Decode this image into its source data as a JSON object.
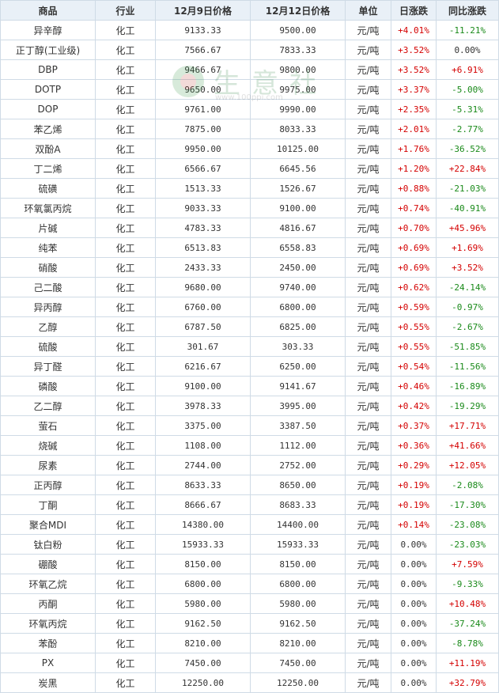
{
  "headers": [
    "商品",
    "行业",
    "12月9日价格",
    "12月12日价格",
    "单位",
    "日涨跌",
    "同比涨跌"
  ],
  "watermark": {
    "text": "生意社",
    "url": "www.100ppi.com"
  },
  "colors": {
    "up": "#d40000",
    "down": "#1a8a1a",
    "flat": "#333333"
  },
  "rows": [
    {
      "name": "异辛醇",
      "industry": "化工",
      "p1": "9133.33",
      "p2": "9500.00",
      "unit": "元/吨",
      "day": "+4.01%",
      "yoy": "-11.21%"
    },
    {
      "name": "正丁醇(工业级)",
      "industry": "化工",
      "p1": "7566.67",
      "p2": "7833.33",
      "unit": "元/吨",
      "day": "+3.52%",
      "yoy": "0.00%"
    },
    {
      "name": "DBP",
      "industry": "化工",
      "p1": "9466.67",
      "p2": "9800.00",
      "unit": "元/吨",
      "day": "+3.52%",
      "yoy": "+6.91%"
    },
    {
      "name": "DOTP",
      "industry": "化工",
      "p1": "9650.00",
      "p2": "9975.00",
      "unit": "元/吨",
      "day": "+3.37%",
      "yoy": "-5.00%"
    },
    {
      "name": "DOP",
      "industry": "化工",
      "p1": "9761.00",
      "p2": "9990.00",
      "unit": "元/吨",
      "day": "+2.35%",
      "yoy": "-5.31%"
    },
    {
      "name": "苯乙烯",
      "industry": "化工",
      "p1": "7875.00",
      "p2": "8033.33",
      "unit": "元/吨",
      "day": "+2.01%",
      "yoy": "-2.77%"
    },
    {
      "name": "双酚A",
      "industry": "化工",
      "p1": "9950.00",
      "p2": "10125.00",
      "unit": "元/吨",
      "day": "+1.76%",
      "yoy": "-36.52%"
    },
    {
      "name": "丁二烯",
      "industry": "化工",
      "p1": "6566.67",
      "p2": "6645.56",
      "unit": "元/吨",
      "day": "+1.20%",
      "yoy": "+22.84%"
    },
    {
      "name": "硫磺",
      "industry": "化工",
      "p1": "1513.33",
      "p2": "1526.67",
      "unit": "元/吨",
      "day": "+0.88%",
      "yoy": "-21.03%"
    },
    {
      "name": "环氧氯丙烷",
      "industry": "化工",
      "p1": "9033.33",
      "p2": "9100.00",
      "unit": "元/吨",
      "day": "+0.74%",
      "yoy": "-40.91%"
    },
    {
      "name": "片碱",
      "industry": "化工",
      "p1": "4783.33",
      "p2": "4816.67",
      "unit": "元/吨",
      "day": "+0.70%",
      "yoy": "+45.96%"
    },
    {
      "name": "纯苯",
      "industry": "化工",
      "p1": "6513.83",
      "p2": "6558.83",
      "unit": "元/吨",
      "day": "+0.69%",
      "yoy": "+1.69%"
    },
    {
      "name": "硝酸",
      "industry": "化工",
      "p1": "2433.33",
      "p2": "2450.00",
      "unit": "元/吨",
      "day": "+0.69%",
      "yoy": "+3.52%"
    },
    {
      "name": "己二酸",
      "industry": "化工",
      "p1": "9680.00",
      "p2": "9740.00",
      "unit": "元/吨",
      "day": "+0.62%",
      "yoy": "-24.14%"
    },
    {
      "name": "异丙醇",
      "industry": "化工",
      "p1": "6760.00",
      "p2": "6800.00",
      "unit": "元/吨",
      "day": "+0.59%",
      "yoy": "-0.97%"
    },
    {
      "name": "乙醇",
      "industry": "化工",
      "p1": "6787.50",
      "p2": "6825.00",
      "unit": "元/吨",
      "day": "+0.55%",
      "yoy": "-2.67%"
    },
    {
      "name": "硫酸",
      "industry": "化工",
      "p1": "301.67",
      "p2": "303.33",
      "unit": "元/吨",
      "day": "+0.55%",
      "yoy": "-51.85%"
    },
    {
      "name": "异丁醛",
      "industry": "化工",
      "p1": "6216.67",
      "p2": "6250.00",
      "unit": "元/吨",
      "day": "+0.54%",
      "yoy": "-11.56%"
    },
    {
      "name": "磷酸",
      "industry": "化工",
      "p1": "9100.00",
      "p2": "9141.67",
      "unit": "元/吨",
      "day": "+0.46%",
      "yoy": "-16.89%"
    },
    {
      "name": "乙二醇",
      "industry": "化工",
      "p1": "3978.33",
      "p2": "3995.00",
      "unit": "元/吨",
      "day": "+0.42%",
      "yoy": "-19.29%"
    },
    {
      "name": "萤石",
      "industry": "化工",
      "p1": "3375.00",
      "p2": "3387.50",
      "unit": "元/吨",
      "day": "+0.37%",
      "yoy": "+17.71%"
    },
    {
      "name": "烧碱",
      "industry": "化工",
      "p1": "1108.00",
      "p2": "1112.00",
      "unit": "元/吨",
      "day": "+0.36%",
      "yoy": "+41.66%"
    },
    {
      "name": "尿素",
      "industry": "化工",
      "p1": "2744.00",
      "p2": "2752.00",
      "unit": "元/吨",
      "day": "+0.29%",
      "yoy": "+12.05%"
    },
    {
      "name": "正丙醇",
      "industry": "化工",
      "p1": "8633.33",
      "p2": "8650.00",
      "unit": "元/吨",
      "day": "+0.19%",
      "yoy": "-2.08%"
    },
    {
      "name": "丁酮",
      "industry": "化工",
      "p1": "8666.67",
      "p2": "8683.33",
      "unit": "元/吨",
      "day": "+0.19%",
      "yoy": "-17.30%"
    },
    {
      "name": "聚合MDI",
      "industry": "化工",
      "p1": "14380.00",
      "p2": "14400.00",
      "unit": "元/吨",
      "day": "+0.14%",
      "yoy": "-23.08%"
    },
    {
      "name": "钛白粉",
      "industry": "化工",
      "p1": "15933.33",
      "p2": "15933.33",
      "unit": "元/吨",
      "day": "0.00%",
      "yoy": "-23.03%"
    },
    {
      "name": "硼酸",
      "industry": "化工",
      "p1": "8150.00",
      "p2": "8150.00",
      "unit": "元/吨",
      "day": "0.00%",
      "yoy": "+7.59%"
    },
    {
      "name": "环氧乙烷",
      "industry": "化工",
      "p1": "6800.00",
      "p2": "6800.00",
      "unit": "元/吨",
      "day": "0.00%",
      "yoy": "-9.33%"
    },
    {
      "name": "丙酮",
      "industry": "化工",
      "p1": "5980.00",
      "p2": "5980.00",
      "unit": "元/吨",
      "day": "0.00%",
      "yoy": "+10.48%"
    },
    {
      "name": "环氧丙烷",
      "industry": "化工",
      "p1": "9162.50",
      "p2": "9162.50",
      "unit": "元/吨",
      "day": "0.00%",
      "yoy": "-37.24%"
    },
    {
      "name": "苯酚",
      "industry": "化工",
      "p1": "8210.00",
      "p2": "8210.00",
      "unit": "元/吨",
      "day": "0.00%",
      "yoy": "-8.78%"
    },
    {
      "name": "PX",
      "industry": "化工",
      "p1": "7450.00",
      "p2": "7450.00",
      "unit": "元/吨",
      "day": "0.00%",
      "yoy": "+11.19%"
    },
    {
      "name": "炭黑",
      "industry": "化工",
      "p1": "12250.00",
      "p2": "12250.00",
      "unit": "元/吨",
      "day": "0.00%",
      "yoy": "+32.79%"
    }
  ]
}
